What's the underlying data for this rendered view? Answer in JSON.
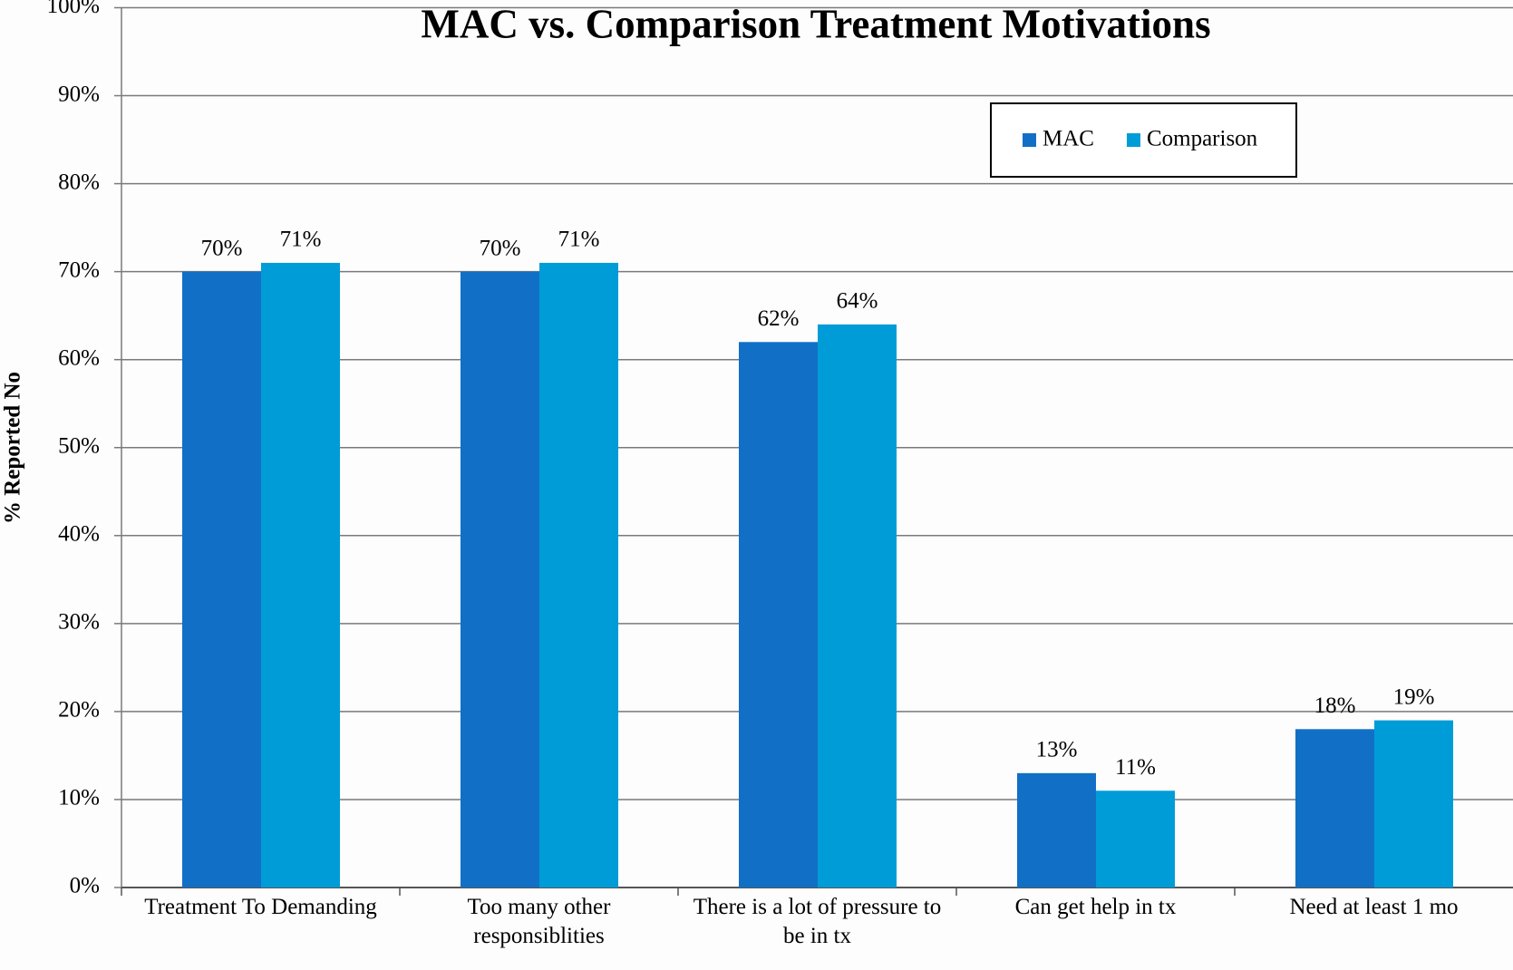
{
  "chart_data": {
    "type": "bar",
    "title": "MAC vs. Comparison Treatment Motivations",
    "y_label": "% Reported No",
    "categories": [
      "Treatment To Demanding",
      "Too many other responsiblities",
      "There is a lot of pressure to be in tx",
      "Can get help in tx",
      "Need at least 1 mo"
    ],
    "series": [
      {
        "name": "MAC",
        "color": "#1170c6",
        "values": [
          70,
          70,
          62,
          13,
          18
        ],
        "value_labels": [
          "70%",
          "70%",
          "62%",
          "13%",
          "18%"
        ]
      },
      {
        "name": "Comparison",
        "color": "#009cd8",
        "values": [
          71,
          71,
          64,
          11,
          19
        ],
        "value_labels": [
          "71%",
          "71%",
          "64%",
          "11%",
          "19%"
        ]
      }
    ],
    "ylim": [
      0,
      100
    ],
    "yticks": [
      {
        "value": 0,
        "label": "0%"
      },
      {
        "value": 10,
        "label": "10%"
      },
      {
        "value": 20,
        "label": "20%"
      },
      {
        "value": 30,
        "label": "30%"
      },
      {
        "value": 40,
        "label": "40%"
      },
      {
        "value": 50,
        "label": "50%"
      },
      {
        "value": 60,
        "label": "60%"
      },
      {
        "value": 70,
        "label": "70%"
      },
      {
        "value": 80,
        "label": "80%"
      },
      {
        "value": 90,
        "label": "90%"
      },
      {
        "value": 100,
        "label": "100%"
      }
    ],
    "grid": true,
    "legend": "upper right"
  }
}
